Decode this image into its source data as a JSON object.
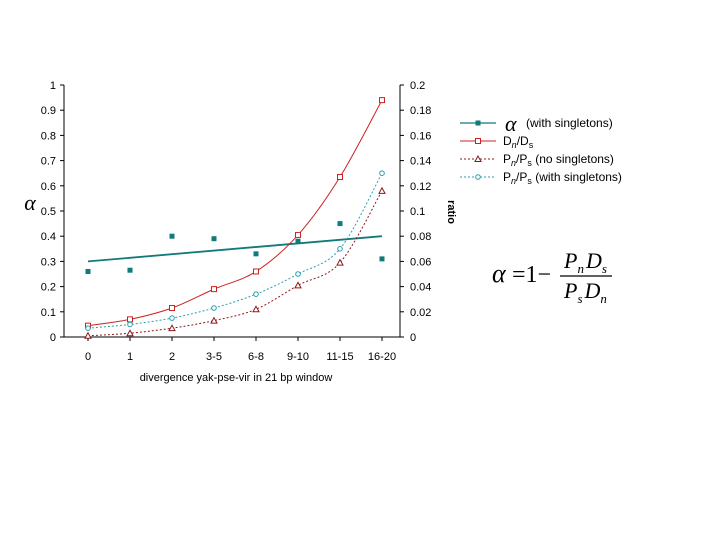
{
  "chart_data": {
    "type": "line",
    "title": "",
    "xlabel": "divergence yak-pse-vir in 21 bp window",
    "ylabel_left": "α",
    "ylabel_right": "ratio",
    "categories": [
      "0",
      "1",
      "2",
      "3-5",
      "6-8",
      "9-10",
      "11-15",
      "16-20"
    ],
    "left_axis": {
      "ylim": [
        0,
        1
      ],
      "ticks": [
        "0",
        "0.1",
        "0.2",
        "0.3",
        "0.4",
        "0.5",
        "0.6",
        "0.7",
        "0.8",
        "0.9",
        "1"
      ]
    },
    "right_axis": {
      "ylim": [
        0,
        0.2
      ],
      "ticks": [
        "0",
        "0.02",
        "0.04",
        "0.06",
        "0.08",
        "0.1",
        "0.12",
        "0.14",
        "0.16",
        "0.18",
        "0.2"
      ]
    },
    "series": [
      {
        "name": "α (with singletons)",
        "legend_symbol": "α",
        "legend_text": " (with singletons)",
        "axis": "left",
        "style": "scatter",
        "color": "#117A7A",
        "values": [
          0.26,
          0.265,
          0.4,
          0.39,
          0.33,
          0.38,
          0.45,
          0.31
        ],
        "trendline": [
          0.3,
          0.4
        ]
      },
      {
        "name": "Dn/Ds",
        "legend_main": "D",
        "legend_sub": "n",
        "legend_mid": "/D",
        "legend_sub2": "s",
        "legend_rest": "",
        "axis": "right",
        "style": "solid",
        "color": "#CC2222",
        "values": [
          0.009,
          0.014,
          0.023,
          0.038,
          0.052,
          0.081,
          0.127,
          0.188
        ]
      },
      {
        "name": "Pn/Ps (no singletons)",
        "legend_main": "P",
        "legend_sub": "n",
        "legend_mid": "/P",
        "legend_sub2": "s",
        "legend_rest": " (no singletons)",
        "axis": "right",
        "style": "dotted",
        "color": "#8B1A1A",
        "values": [
          0.001,
          0.003,
          0.007,
          0.013,
          0.022,
          0.041,
          0.059,
          0.116
        ]
      },
      {
        "name": "Pn/Ps (with singletons)",
        "legend_main": "P",
        "legend_sub": "n",
        "legend_mid": "/P",
        "legend_sub2": "s",
        "legend_rest": " (with singletons)",
        "axis": "right",
        "style": "dotted",
        "color": "#2A9FB0",
        "values": [
          0.007,
          0.01,
          0.015,
          0.023,
          0.034,
          0.05,
          0.07,
          0.13
        ]
      }
    ],
    "annotation": {
      "lhs": "α",
      "eq": "=1−",
      "num_a": "P",
      "num_a_sub": "n",
      "num_b": "D",
      "num_b_sub": "s",
      "den_a": "P",
      "den_a_sub": "s",
      "den_b": "D",
      "den_b_sub": "n"
    }
  }
}
